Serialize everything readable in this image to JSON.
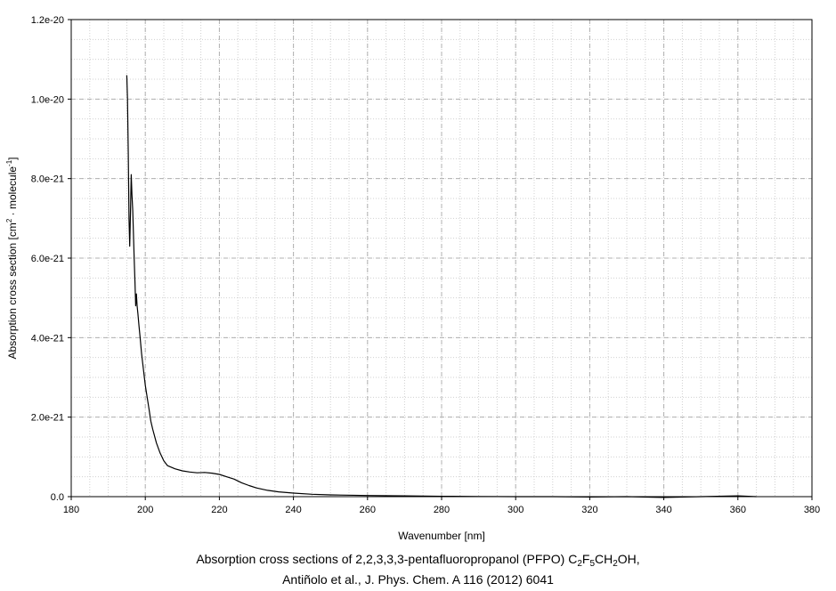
{
  "chart_data": {
    "type": "line",
    "title": "",
    "xlabel": "Wavenumber [nm]",
    "ylabel": "Absorption cross section [cm² · molecule⁻¹]",
    "ylabel_parts": [
      "Absorption cross section [cm",
      "2",
      " · molecule",
      "-1",
      "]"
    ],
    "xlim": [
      180,
      380
    ],
    "ylim": [
      0,
      1.2e-20
    ],
    "x_ticks": [
      180,
      200,
      220,
      240,
      260,
      280,
      300,
      320,
      340,
      360,
      380
    ],
    "x_tick_labels": [
      "180",
      "200",
      "220",
      "240",
      "260",
      "280",
      "300",
      "320",
      "340",
      "360",
      "380"
    ],
    "y_ticks": [
      0,
      2e-21,
      4e-21,
      6e-21,
      8e-21,
      1e-20,
      1.2e-20
    ],
    "y_tick_labels": [
      "0.0",
      "2.0e-21",
      "4.0e-21",
      "6.0e-21",
      "8.0e-21",
      "1.0e-20",
      "1.2e-20"
    ],
    "grid": true,
    "legend": "none",
    "series": [
      {
        "color": "#000000",
        "x": [
          195.0,
          195.2,
          195.4,
          195.6,
          195.8,
          196.0,
          196.2,
          196.4,
          196.6,
          196.8,
          197.0,
          197.2,
          197.4,
          197.6,
          197.8,
          198.0,
          198.3,
          198.6,
          199.0,
          199.5,
          200.0,
          200.5,
          201.0,
          201.5,
          202.0,
          203.0,
          204.0,
          205.0,
          206.0,
          208.0,
          210.0,
          212.0,
          214.0,
          216.0,
          218.0,
          220.0,
          222.0,
          224.0,
          226.0,
          228.0,
          230.0,
          233.0,
          236.0,
          240.0,
          245.0,
          250.0,
          260.0,
          270.0,
          280.0,
          290.0,
          300.0,
          310.0,
          320.0,
          330.0,
          340.0,
          350.0,
          360.0,
          365.0
        ],
        "y": [
          1.06e-20,
          1e-20,
          8.6e-21,
          7e-21,
          6.3e-21,
          7.2e-21,
          8.1e-21,
          7.6e-21,
          7.2e-21,
          6.6e-21,
          6e-21,
          5.4e-21,
          4.8e-21,
          5.1e-21,
          4.8e-21,
          4.6e-21,
          4.3e-21,
          4e-21,
          3.6e-21,
          3.2e-21,
          2.8e-21,
          2.5e-21,
          2.2e-21,
          1.9e-21,
          1.7e-21,
          1.35e-21,
          1.1e-21,
          9e-22,
          7.8e-22,
          7e-22,
          6.5e-22,
          6.2e-22,
          6e-22,
          6.1e-22,
          5.9e-22,
          5.6e-22,
          5e-22,
          4.4e-22,
          3.5e-22,
          2.8e-22,
          2.2e-22,
          1.6e-22,
          1.2e-22,
          9e-23,
          6e-23,
          4.5e-23,
          3e-23,
          2e-23,
          1e-23,
          5e-24,
          0.0,
          0.0,
          -1e-23,
          0.0,
          -2e-23,
          0.0,
          2e-23,
          0.0
        ]
      }
    ],
    "caption": {
      "line1_parts": [
        "Absorption cross sections of 2,2,3,3,3-pentafluoropropanol (PFPO) C",
        "2",
        "F",
        "5",
        "CH",
        "2",
        "OH,"
      ],
      "line2": "Antiñolo et al., J. Phys. Chem. A 116 (2012) 6041"
    }
  }
}
